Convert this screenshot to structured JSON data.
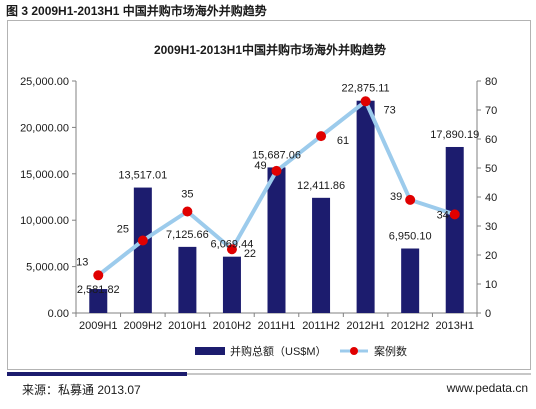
{
  "figure_title": "图 3 2009H1-2013H1 中国并购市场海外并购趋势",
  "source": "来源：私募通 2013.07",
  "website": "www.pedata.cn",
  "colors": {
    "bar": "#1c1c6e",
    "line": "#9ccbec",
    "marker": "#e00000"
  },
  "chart_data": {
    "type": "bar",
    "title": "2009H1-2013H1中国并购市场海外并购趋势",
    "categories": [
      "2009H1",
      "2009H2",
      "2010H1",
      "2010H2",
      "2011H1",
      "2011H2",
      "2012H1",
      "2012H2",
      "2013H1"
    ],
    "series": [
      {
        "name": "并购总额（US$M）",
        "type": "bar",
        "axis": "left",
        "values": [
          2581.82,
          13517.01,
          7125.66,
          6069.44,
          15687.06,
          12411.86,
          22875.11,
          6950.1,
          17890.19
        ],
        "labels": [
          "2,581.82",
          "13,517.01",
          "7,125.66",
          "6,069.44",
          "15,687.06",
          "12,411.86",
          "22,875.11",
          "6,950.10",
          "17,890.19"
        ]
      },
      {
        "name": "案例数",
        "type": "line",
        "axis": "right",
        "values": [
          13,
          25,
          35,
          22,
          49,
          61,
          73,
          39,
          34
        ],
        "labels": [
          "13",
          "25",
          "35",
          "22",
          "49",
          "61",
          "73",
          "39",
          "34"
        ]
      }
    ],
    "left_axis": {
      "min": 0,
      "max": 25000,
      "ticks": [
        "0.00",
        "5,000.00",
        "10,000.00",
        "15,000.00",
        "20,000.00",
        "25,000.00"
      ]
    },
    "right_axis": {
      "min": 0,
      "max": 80,
      "ticks": [
        "0",
        "10",
        "20",
        "30",
        "40",
        "50",
        "60",
        "70",
        "80"
      ]
    },
    "grid": false,
    "legend_position": "bottom"
  }
}
